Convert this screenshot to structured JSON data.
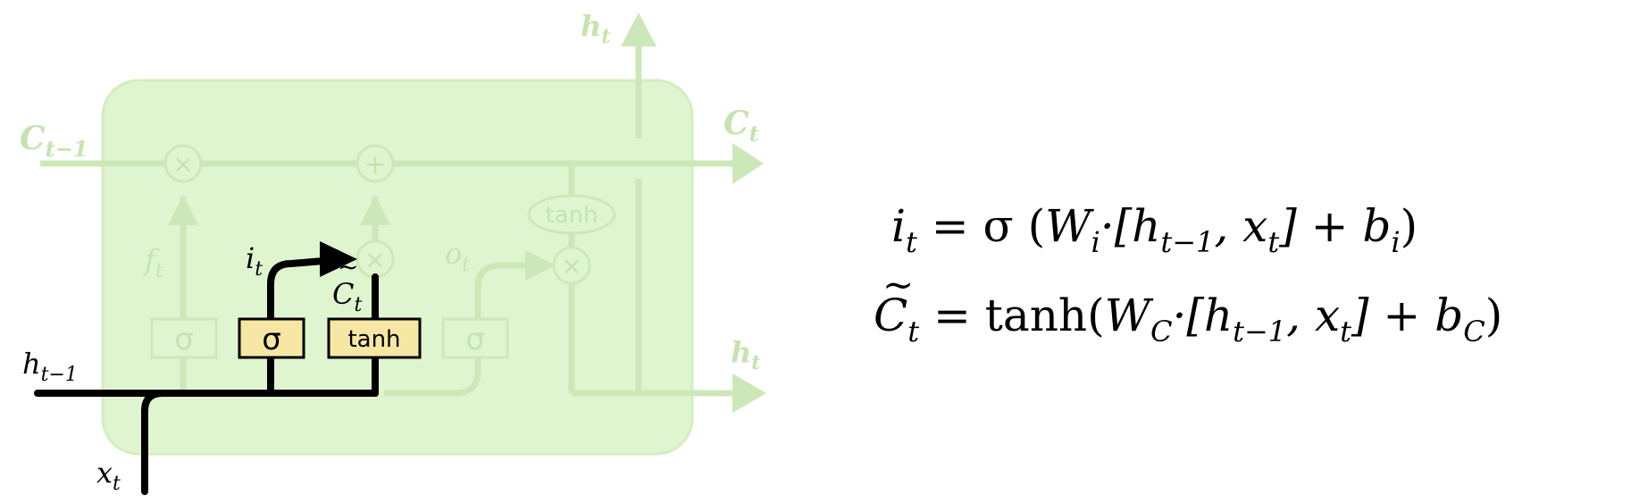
{
  "diagram": {
    "labels": {
      "c_prev": "C",
      "c_prev_sub": "t−1",
      "c_t": "C",
      "c_t_sub": "t",
      "h_top": "h",
      "h_top_sub": "t",
      "h_right": "h",
      "h_right_sub": "t",
      "h_prev": "h",
      "h_prev_sub": "t−1",
      "x_t": "x",
      "x_t_sub": "t",
      "f_t": "f",
      "f_t_sub": "t",
      "i_t": "i",
      "i_t_sub": "t",
      "o_t": "o",
      "o_t_sub": "t",
      "c_tilde": "C",
      "c_tilde_sub": "t"
    },
    "boxes": {
      "sigma_forget": "σ",
      "sigma_input": "σ",
      "tanh_candidate": "tanh",
      "sigma_output": "σ",
      "tanh_cell": "tanh"
    },
    "ops": {
      "mult_forget": "×",
      "add_cell": "+",
      "mult_input": "×",
      "mult_output": "×"
    },
    "colors": {
      "cell_fill": "#dff5cf",
      "faded_line": "#cde8b8",
      "highlight_box": "#f7e7a4",
      "highlight_line": "#000000"
    }
  },
  "equations": {
    "eq1": {
      "lhs": "i",
      "lhs_sub": "t",
      "eq": " = σ (",
      "w": "W",
      "w_sub": "i",
      "mid": "·[h",
      "h_sub": "t−1",
      "comma": ", x",
      "x_sub": "t",
      "close": "]  +  b",
      "b_sub": "i",
      "end": ")"
    },
    "eq2": {
      "lhs": "C",
      "lhs_sub": "t",
      "eq": " = tanh(",
      "w": "W",
      "w_sub": "C",
      "mid": "·[h",
      "h_sub": "t−1",
      "comma": ", x",
      "x_sub": "t",
      "close": "]  +  b",
      "b_sub": "C",
      "end": ")"
    }
  }
}
